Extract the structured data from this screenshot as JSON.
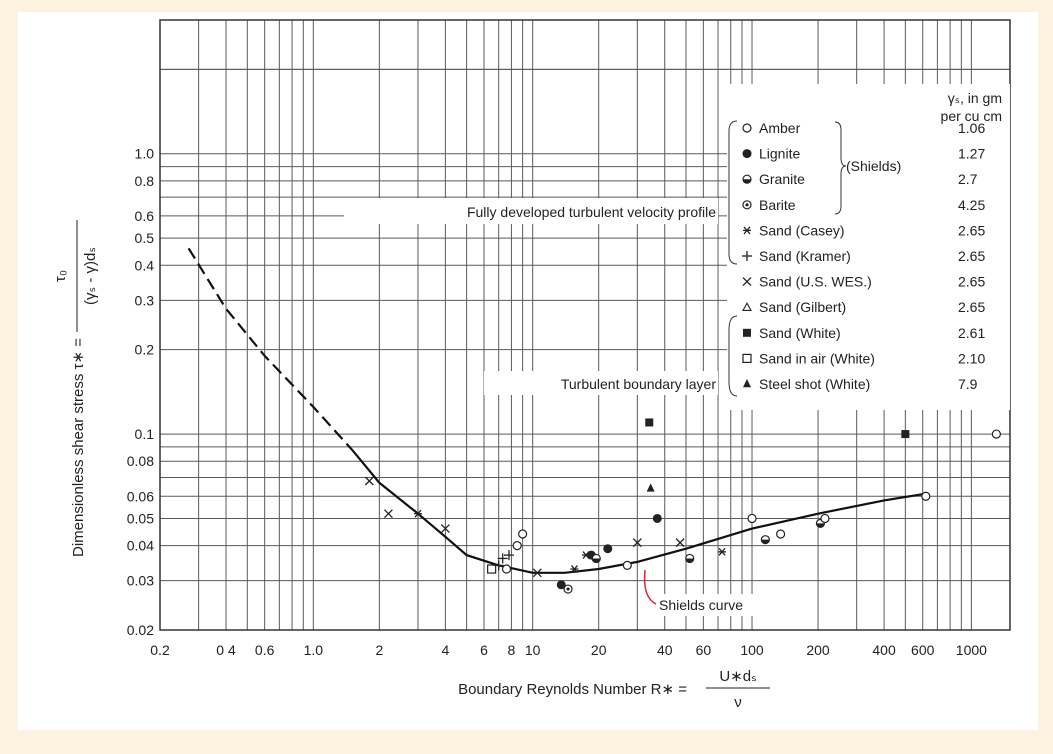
{
  "chart_data": {
    "type": "scatter",
    "xscale": "log",
    "yscale": "log",
    "xlim": [
      0.2,
      1500
    ],
    "ylim": [
      0.02,
      3
    ],
    "grid": true,
    "xlabel": "Boundary Reynolds Number R∗ =",
    "xlabel_formula_num": "U∗dₛ",
    "xlabel_formula_den": "ν",
    "ylabel": "Dimensionless shear stress τ∗ =",
    "ylabel_formula_num": "τ₀",
    "ylabel_formula_den": "(γₛ - γ)dₛ",
    "x_ticks": [
      {
        "v": 0.2,
        "t": "0.2"
      },
      {
        "v": 0.4,
        "t": "0 4"
      },
      {
        "v": 0.6,
        "t": "0.6"
      },
      {
        "v": 1.0,
        "t": "1.0"
      },
      {
        "v": 2,
        "t": "2"
      },
      {
        "v": 4,
        "t": "4"
      },
      {
        "v": 6,
        "t": "6"
      },
      {
        "v": 8,
        "t": "8"
      },
      {
        "v": 10,
        "t": "10"
      },
      {
        "v": 20,
        "t": "20"
      },
      {
        "v": 40,
        "t": "40"
      },
      {
        "v": 60,
        "t": "60"
      },
      {
        "v": 100,
        "t": "100"
      },
      {
        "v": 200,
        "t": "200"
      },
      {
        "v": 400,
        "t": "400"
      },
      {
        "v": 600,
        "t": "600"
      },
      {
        "v": 1000,
        "t": "1000"
      }
    ],
    "y_ticks": [
      {
        "v": 0.02,
        "t": "0.02"
      },
      {
        "v": 0.03,
        "t": "0.03"
      },
      {
        "v": 0.04,
        "t": "0.04"
      },
      {
        "v": 0.05,
        "t": "0.05"
      },
      {
        "v": 0.06,
        "t": "0.06"
      },
      {
        "v": 0.08,
        "t": "0.08"
      },
      {
        "v": 0.1,
        "t": "0.1"
      },
      {
        "v": 0.2,
        "t": "0.2"
      },
      {
        "v": 0.3,
        "t": "0.3"
      },
      {
        "v": 0.4,
        "t": "0.4"
      },
      {
        "v": 0.5,
        "t": "0.5"
      },
      {
        "v": 0.6,
        "t": "0.6"
      },
      {
        "v": 0.8,
        "t": "0.8"
      },
      {
        "v": 1.0,
        "t": "1.0"
      }
    ],
    "shields_curve_dashed": [
      [
        0.27,
        0.46
      ],
      [
        0.4,
        0.28
      ],
      [
        0.6,
        0.19
      ],
      [
        1.0,
        0.125
      ],
      [
        1.5,
        0.088
      ]
    ],
    "shields_curve_solid": [
      [
        1.5,
        0.088
      ],
      [
        2,
        0.067
      ],
      [
        3,
        0.052
      ],
      [
        4,
        0.043
      ],
      [
        5,
        0.037
      ],
      [
        7,
        0.034
      ],
      [
        10,
        0.032
      ],
      [
        14,
        0.032
      ],
      [
        20,
        0.033
      ],
      [
        30,
        0.035
      ],
      [
        50,
        0.039
      ],
      [
        100,
        0.046
      ],
      [
        200,
        0.052
      ],
      [
        400,
        0.058
      ],
      [
        600,
        0.061
      ]
    ],
    "annotations": {
      "fully_developed": "Fully developed turbulent velocity profile",
      "turbulent_boundary": "Turbulent boundary layer",
      "shields_curve": "Shields curve"
    },
    "legend": {
      "title_line1": "γₛ, in gm",
      "title_line2": "per cu cm",
      "group_label": "(Shields)",
      "entries": [
        {
          "label": "Amber",
          "value": "1.06",
          "marker": "open-circle"
        },
        {
          "label": "Lignite",
          "value": "1.27",
          "marker": "filled-circle"
        },
        {
          "label": "Granite",
          "value": "2.7",
          "marker": "half-circle"
        },
        {
          "label": "Barite",
          "value": "4.25",
          "marker": "dot-circle"
        },
        {
          "label": "Sand (Casey)",
          "value": "2.65",
          "marker": "asterisk"
        },
        {
          "label": "Sand (Kramer)",
          "value": "2.65",
          "marker": "plus"
        },
        {
          "label": "Sand (U.S. WES.)",
          "value": "2.65",
          "marker": "cross"
        },
        {
          "label": "Sand (Gilbert)",
          "value": "2.65",
          "marker": "open-triangle"
        },
        {
          "label": "Sand (White)",
          "value": "2.61",
          "marker": "filled-square"
        },
        {
          "label": "Sand in air (White)",
          "value": "2.10",
          "marker": "open-square"
        },
        {
          "label": "Steel shot (White)",
          "value": "7.9",
          "marker": "filled-triangle"
        }
      ]
    },
    "points": [
      {
        "x": 1.8,
        "y": 0.068,
        "m": "cross"
      },
      {
        "x": 2.2,
        "y": 0.052,
        "m": "cross"
      },
      {
        "x": 3.0,
        "y": 0.052,
        "m": "asterisk"
      },
      {
        "x": 4.0,
        "y": 0.046,
        "m": "cross"
      },
      {
        "x": 6.5,
        "y": 0.033,
        "m": "open-square"
      },
      {
        "x": 7.0,
        "y": 0.034,
        "m": "plus"
      },
      {
        "x": 7.3,
        "y": 0.036,
        "m": "plus"
      },
      {
        "x": 7.6,
        "y": 0.033,
        "m": "open-circle"
      },
      {
        "x": 7.8,
        "y": 0.037,
        "m": "plus"
      },
      {
        "x": 8.5,
        "y": 0.04,
        "m": "open-circle"
      },
      {
        "x": 9.0,
        "y": 0.044,
        "m": "open-circle"
      },
      {
        "x": 10.5,
        "y": 0.032,
        "m": "cross"
      },
      {
        "x": 13.5,
        "y": 0.029,
        "m": "filled-circle"
      },
      {
        "x": 14.5,
        "y": 0.028,
        "m": "dot-circle"
      },
      {
        "x": 15.5,
        "y": 0.033,
        "m": "asterisk"
      },
      {
        "x": 17.5,
        "y": 0.037,
        "m": "asterisk"
      },
      {
        "x": 18.5,
        "y": 0.037,
        "m": "filled-circle"
      },
      {
        "x": 19.5,
        "y": 0.036,
        "m": "half-circle"
      },
      {
        "x": 22,
        "y": 0.039,
        "m": "filled-circle"
      },
      {
        "x": 27,
        "y": 0.034,
        "m": "open-circle"
      },
      {
        "x": 30,
        "y": 0.041,
        "m": "cross"
      },
      {
        "x": 34,
        "y": 0.11,
        "m": "filled-square"
      },
      {
        "x": 34.5,
        "y": 0.064,
        "m": "filled-triangle"
      },
      {
        "x": 37,
        "y": 0.05,
        "m": "filled-circle"
      },
      {
        "x": 47,
        "y": 0.041,
        "m": "cross"
      },
      {
        "x": 52,
        "y": 0.036,
        "m": "half-circle"
      },
      {
        "x": 73,
        "y": 0.038,
        "m": "asterisk"
      },
      {
        "x": 100,
        "y": 0.05,
        "m": "open-circle"
      },
      {
        "x": 115,
        "y": 0.042,
        "m": "half-circle"
      },
      {
        "x": 135,
        "y": 0.044,
        "m": "open-circle"
      },
      {
        "x": 205,
        "y": 0.048,
        "m": "half-circle"
      },
      {
        "x": 215,
        "y": 0.05,
        "m": "open-circle"
      },
      {
        "x": 500,
        "y": 0.1,
        "m": "filled-square"
      },
      {
        "x": 620,
        "y": 0.06,
        "m": "open-circle"
      },
      {
        "x": 1300,
        "y": 0.1,
        "m": "open-circle"
      }
    ]
  }
}
